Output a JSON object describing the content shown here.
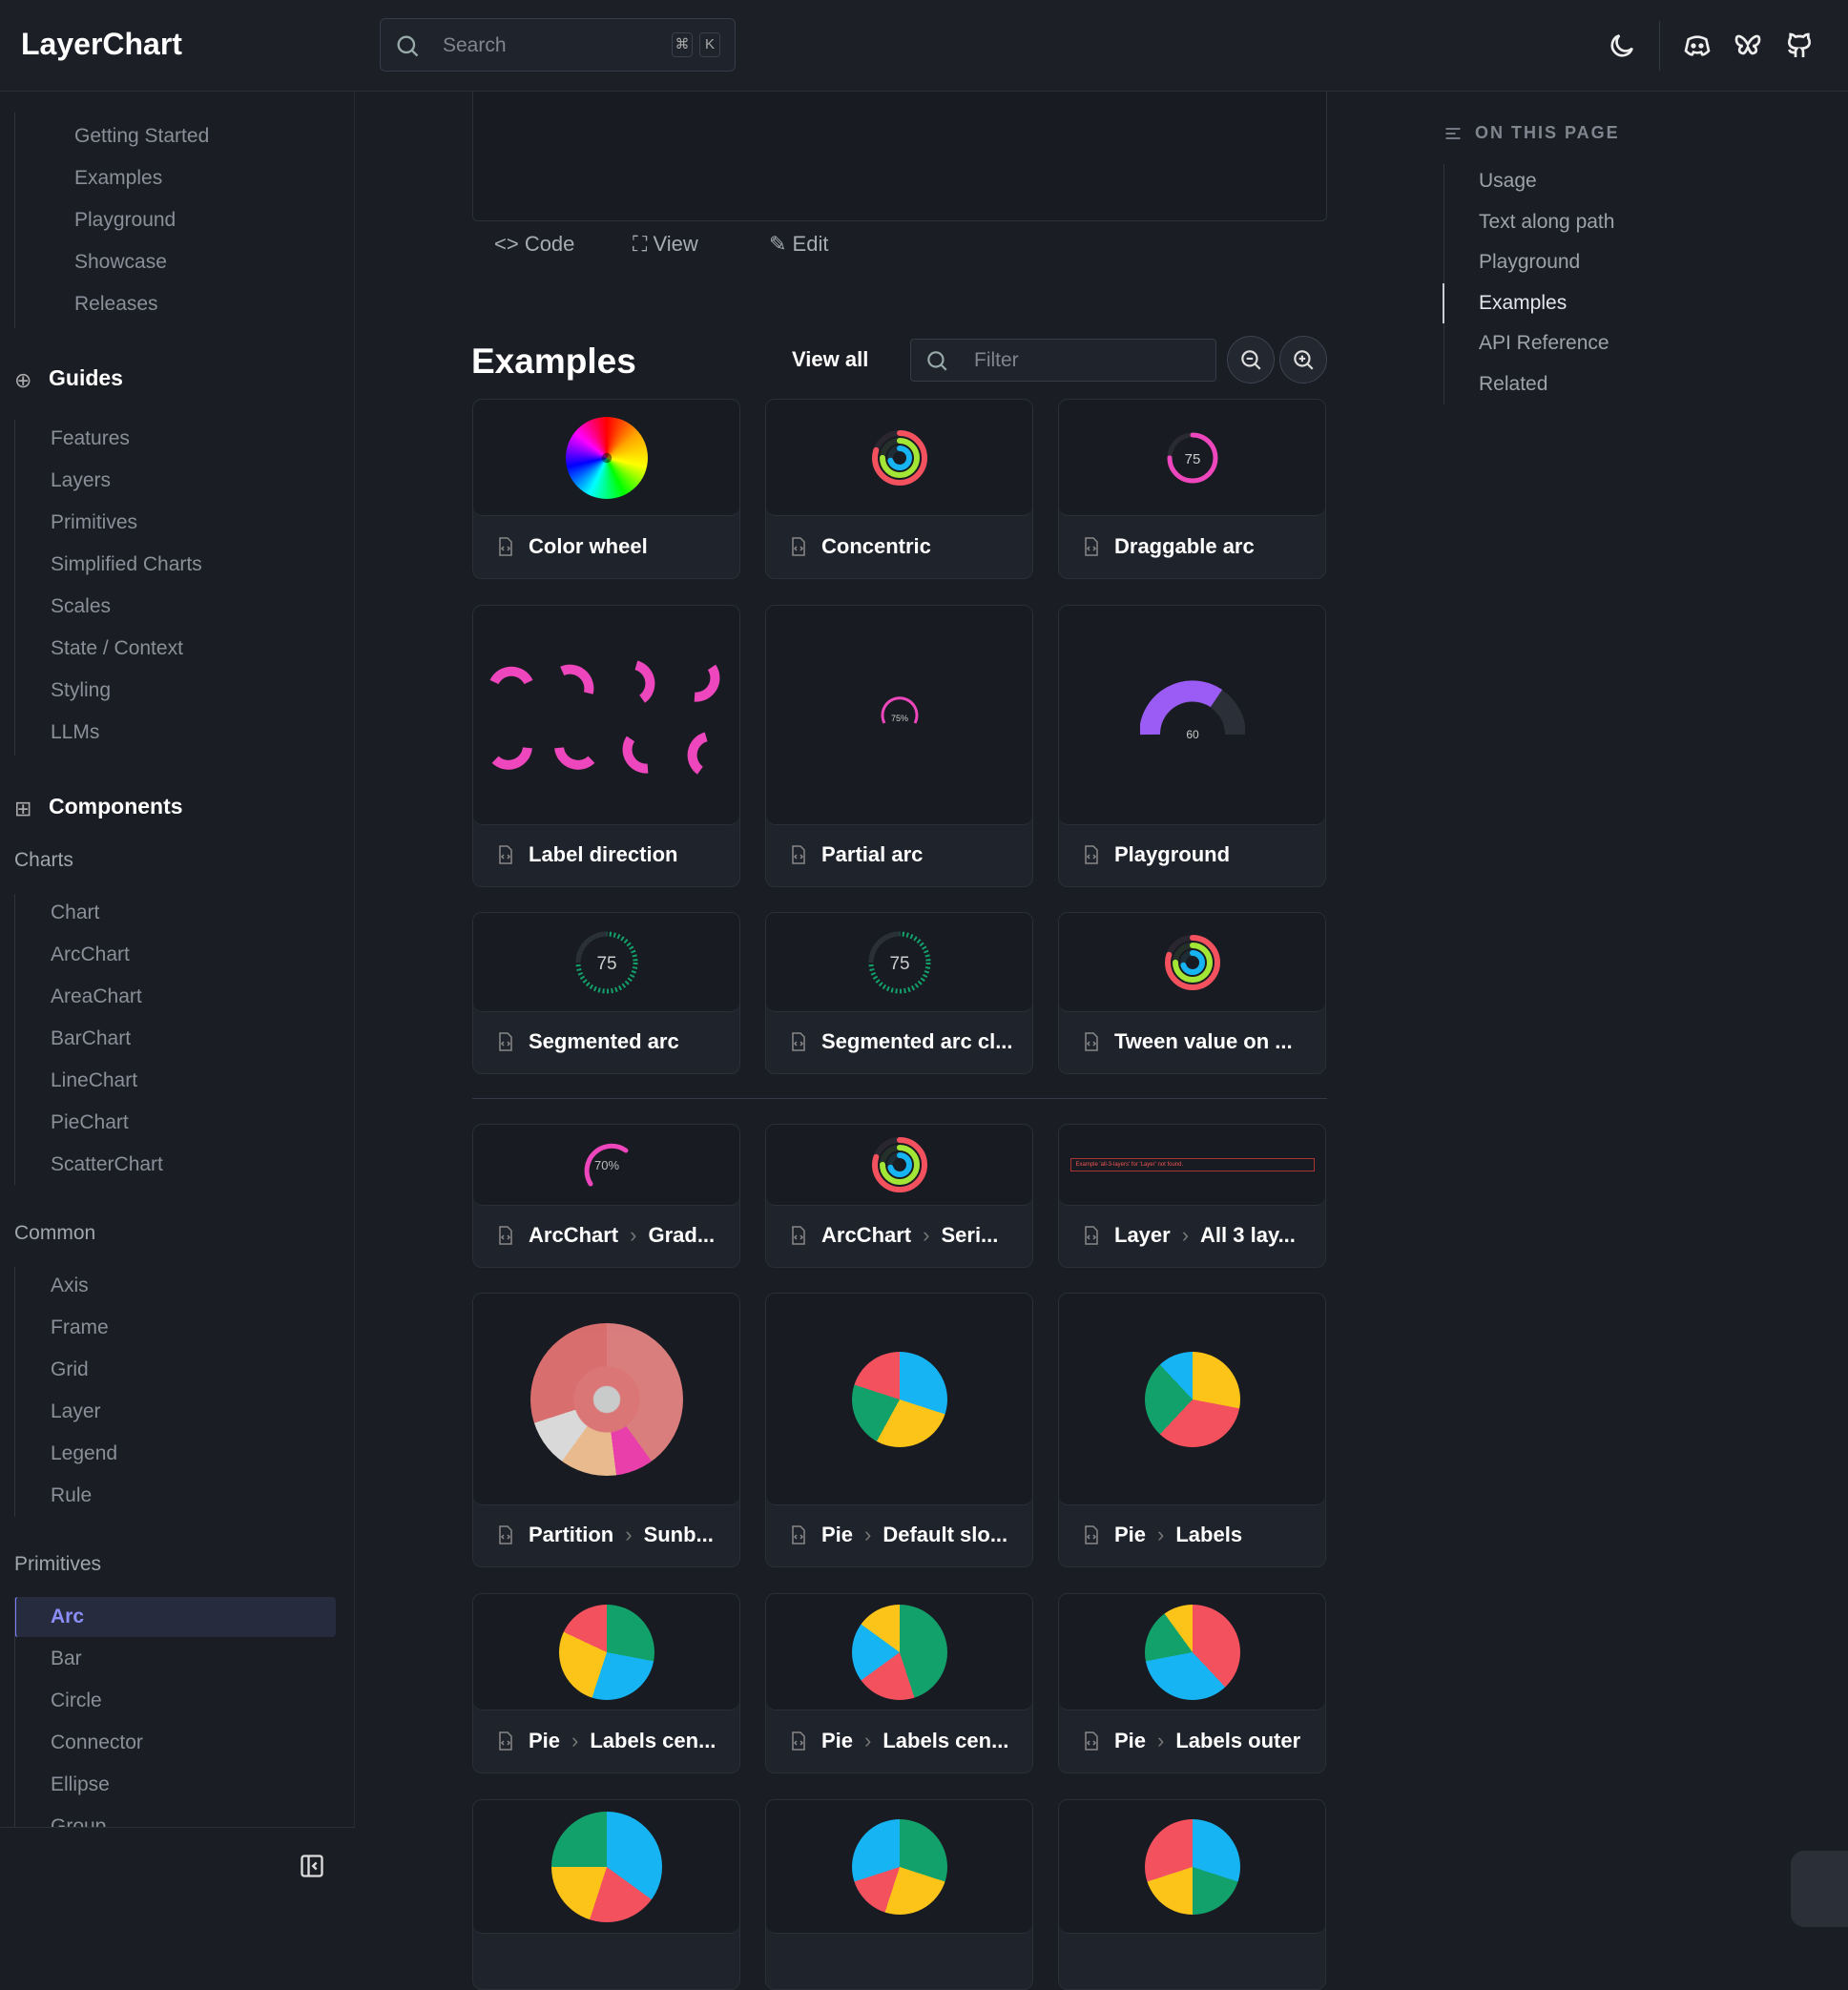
{
  "header": {
    "logo": "LayerChart",
    "search_placeholder": "Search",
    "shortcut_keys": [
      "⌘",
      "K"
    ],
    "icons": [
      "moon-icon",
      "discord-icon",
      "bluesky-icon",
      "github-icon"
    ]
  },
  "sidebar": {
    "top": [
      {
        "label": "Getting Started",
        "icon": "play-circle-icon"
      },
      {
        "label": "Examples",
        "icon": "file-code-icon"
      },
      {
        "label": "Playground",
        "icon": "bolt-icon"
      },
      {
        "label": "Showcase",
        "icon": "showcase-icon"
      },
      {
        "label": "Releases",
        "icon": "releases-icon"
      }
    ],
    "guides_title": "Guides",
    "guides": [
      "Features",
      "Layers",
      "Primitives",
      "Simplified Charts",
      "Scales",
      "State / Context",
      "Styling",
      "LLMs"
    ],
    "components_title": "Components",
    "charts_title": "Charts",
    "charts": [
      "Chart",
      "ArcChart",
      "AreaChart",
      "BarChart",
      "LineChart",
      "PieChart",
      "ScatterChart"
    ],
    "common_title": "Common",
    "common": [
      "Axis",
      "Frame",
      "Grid",
      "Layer",
      "Legend",
      "Rule"
    ],
    "primitives_title": "Primitives",
    "primitives": [
      "Arc",
      "Bar",
      "Circle",
      "Connector",
      "Ellipse",
      "Group"
    ],
    "active": "Arc"
  },
  "demo": {
    "code": "Code",
    "view": "View",
    "edit": "Edit"
  },
  "examples": {
    "title": "Examples",
    "view_all": "View all",
    "filter_placeholder": "Filter",
    "cards": [
      {
        "crumbs": [
          "Color wheel"
        ],
        "preview": "colorwheel"
      },
      {
        "crumbs": [
          "Concentric"
        ],
        "preview": "concentric"
      },
      {
        "crumbs": [
          "Draggable arc"
        ],
        "preview": "arc75pink",
        "value": "75"
      },
      {
        "crumbs": [
          "Label direction"
        ],
        "preview": "labeldir"
      },
      {
        "crumbs": [
          "Partial arc"
        ],
        "preview": "partial",
        "value": "75%"
      },
      {
        "crumbs": [
          "Playground"
        ],
        "preview": "playground",
        "value": "60"
      },
      {
        "crumbs": [
          "Segmented arc"
        ],
        "preview": "segmented",
        "value": "75"
      },
      {
        "crumbs": [
          "Segmented arc cl..."
        ],
        "preview": "segmented",
        "value": "75"
      },
      {
        "crumbs": [
          "Tween value on ..."
        ],
        "preview": "concentric"
      },
      {
        "crumbs": [
          "ArcChart",
          "Grad..."
        ],
        "preview": "gradient",
        "value": "70%"
      },
      {
        "crumbs": [
          "ArcChart",
          "Seri..."
        ],
        "preview": "concentric"
      },
      {
        "crumbs": [
          "Layer",
          "All 3 lay..."
        ],
        "preview": "error",
        "value": "Example 'all-3-layers' for 'Layer' not found."
      },
      {
        "crumbs": [
          "Partition",
          "Sunb..."
        ],
        "preview": "sunburst"
      },
      {
        "crumbs": [
          "Pie",
          "Default slo..."
        ],
        "preview": "pie1"
      },
      {
        "crumbs": [
          "Pie",
          "Labels"
        ],
        "preview": "pie2"
      },
      {
        "crumbs": [
          "Pie",
          "Labels cen..."
        ],
        "preview": "pie3"
      },
      {
        "crumbs": [
          "Pie",
          "Labels cen..."
        ],
        "preview": "pie4"
      },
      {
        "crumbs": [
          "Pie",
          "Labels outer"
        ],
        "preview": "pie5"
      },
      {
        "crumbs": [],
        "preview": "pie6"
      },
      {
        "crumbs": [],
        "preview": "pie7"
      },
      {
        "crumbs": [],
        "preview": "pie8"
      }
    ]
  },
  "toc": {
    "title": "ON THIS PAGE",
    "items": [
      "Usage",
      "Text along path",
      "Playground",
      "Examples",
      "API Reference",
      "Related"
    ],
    "active": "Examples"
  },
  "colors": {
    "red": "#f4515f",
    "cyan": "#16b4f2",
    "yellow": "#fcc419",
    "green": "#12a16b",
    "pink": "#ee46bc",
    "purple": "#9b5cf6",
    "accent": "#7c7ff5"
  }
}
